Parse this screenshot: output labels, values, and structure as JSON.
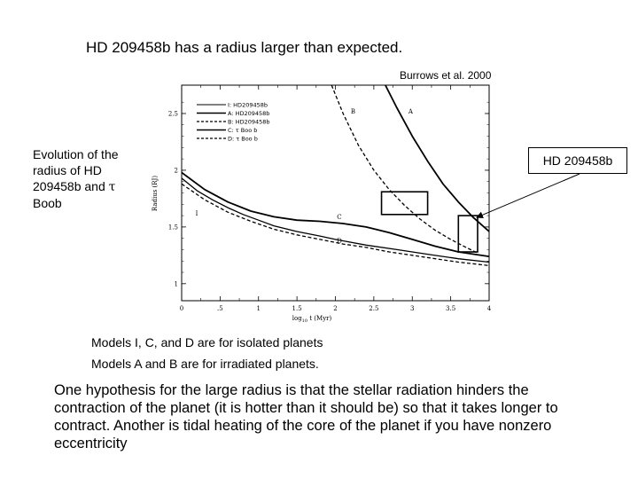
{
  "slide": {
    "title": "HD 209458b has a radius larger than expected.",
    "source": "Burrows et al. 2000",
    "side_caption_a": "Evolution of the radius of HD 209458b and ",
    "side_caption_tau": "τ",
    "side_caption_b": " Boob",
    "callout_label": "HD 209458b",
    "note_1": "Models I, C, and D are for isolated planets",
    "note_2": "Models A and B are for irradiated planets.",
    "body": "One hypothesis for the large radius is that the stellar radiation hinders the contraction of the planet (it is hotter than it should be) so that it takes longer to contract. Another is tidal heating of the core of the planet if you have nonzero eccentricity"
  },
  "chart_data": {
    "type": "line",
    "xlabel_prefix": "log",
    "xlabel_sub": "10",
    "xlabel_suffix": " t  (Myr)",
    "ylabel": "Radius (RJ)",
    "xlim": [
      0,
      4
    ],
    "ylim": [
      0.85,
      2.75
    ],
    "x_ticks": [
      {
        "v": 0,
        "label": "0"
      },
      {
        "v": 0.5,
        "label": ".5"
      },
      {
        "v": 1,
        "label": "1"
      },
      {
        "v": 1.5,
        "label": "1.5"
      },
      {
        "v": 2,
        "label": "2"
      },
      {
        "v": 2.5,
        "label": "2.5"
      },
      {
        "v": 3,
        "label": "3"
      },
      {
        "v": 3.5,
        "label": "3.5"
      },
      {
        "v": 4,
        "label": "4"
      }
    ],
    "y_ticks": [
      {
        "v": 1,
        "label": "1"
      },
      {
        "v": 1.5,
        "label": "1.5"
      },
      {
        "v": 2,
        "label": "2"
      },
      {
        "v": 2.5,
        "label": "2.5"
      }
    ],
    "legend": [
      {
        "label": "I: HD209458b",
        "dash": "solid",
        "width": 1
      },
      {
        "label": "A: HD209458b",
        "dash": "solid",
        "width": 1.6
      },
      {
        "label": "B: HD209458b",
        "dash": "dashed",
        "width": 1.2
      },
      {
        "label": "C: τ  Boo  b",
        "dash": "solid",
        "width": 1.6
      },
      {
        "label": "D: τ  Boo  b",
        "dash": "dashed",
        "width": 1.2
      }
    ],
    "series": [
      {
        "name": "I",
        "dash": "solid",
        "width": 1.3,
        "label_at": [
          0.18,
          1.6
        ],
        "x": [
          0.0,
          0.2,
          0.4,
          0.6,
          0.8,
          1.0,
          1.2,
          1.5,
          1.8,
          2.0,
          2.4,
          2.8,
          3.2,
          3.6,
          4.0
        ],
        "y": [
          1.93,
          1.82,
          1.74,
          1.67,
          1.61,
          1.56,
          1.51,
          1.46,
          1.42,
          1.39,
          1.34,
          1.3,
          1.26,
          1.22,
          1.19
        ]
      },
      {
        "name": "A",
        "dash": "solid",
        "width": 1.8,
        "label_at": [
          2.95,
          2.5
        ],
        "x": [
          2.65,
          2.8,
          3.0,
          3.2,
          3.4,
          3.6,
          3.8,
          4.0
        ],
        "y": [
          2.75,
          2.55,
          2.3,
          2.08,
          1.88,
          1.72,
          1.58,
          1.46
        ]
      },
      {
        "name": "B",
        "dash": "dashed",
        "width": 1.3,
        "label_at": [
          2.2,
          2.5
        ],
        "x": [
          1.95,
          2.1,
          2.3,
          2.5,
          2.7,
          2.9,
          3.1,
          3.3,
          3.5,
          3.7,
          3.85
        ],
        "y": [
          2.75,
          2.5,
          2.22,
          2.0,
          1.83,
          1.69,
          1.57,
          1.47,
          1.39,
          1.32,
          1.27
        ]
      },
      {
        "name": "C",
        "dash": "solid",
        "width": 1.8,
        "label_at": [
          2.02,
          1.57
        ],
        "x": [
          0.0,
          0.3,
          0.6,
          0.9,
          1.2,
          1.5,
          1.8,
          2.1,
          2.4,
          2.7,
          3.0,
          3.3,
          3.6,
          4.0
        ],
        "y": [
          1.98,
          1.83,
          1.72,
          1.64,
          1.59,
          1.56,
          1.55,
          1.53,
          1.5,
          1.45,
          1.39,
          1.33,
          1.28,
          1.24
        ]
      },
      {
        "name": "D",
        "dash": "dashed",
        "width": 1.3,
        "label_at": [
          2.02,
          1.36
        ],
        "x": [
          0.0,
          0.3,
          0.6,
          0.9,
          1.2,
          1.5,
          1.8,
          2.1,
          2.4,
          2.7,
          3.0,
          3.3,
          3.6,
          4.0
        ],
        "y": [
          1.88,
          1.74,
          1.63,
          1.55,
          1.48,
          1.43,
          1.39,
          1.35,
          1.32,
          1.28,
          1.25,
          1.22,
          1.19,
          1.16
        ]
      }
    ],
    "highlight_boxes": [
      {
        "x0": 2.6,
        "x1": 3.2,
        "y0": 1.61,
        "y1": 1.81
      },
      {
        "x0": 3.6,
        "x1": 3.85,
        "y0": 1.28,
        "y1": 1.6
      }
    ],
    "arrow_from": "HD 209458b",
    "arrow_to_box": 1
  },
  "colors": {
    "line": "#000000",
    "background": "#ffffff"
  }
}
